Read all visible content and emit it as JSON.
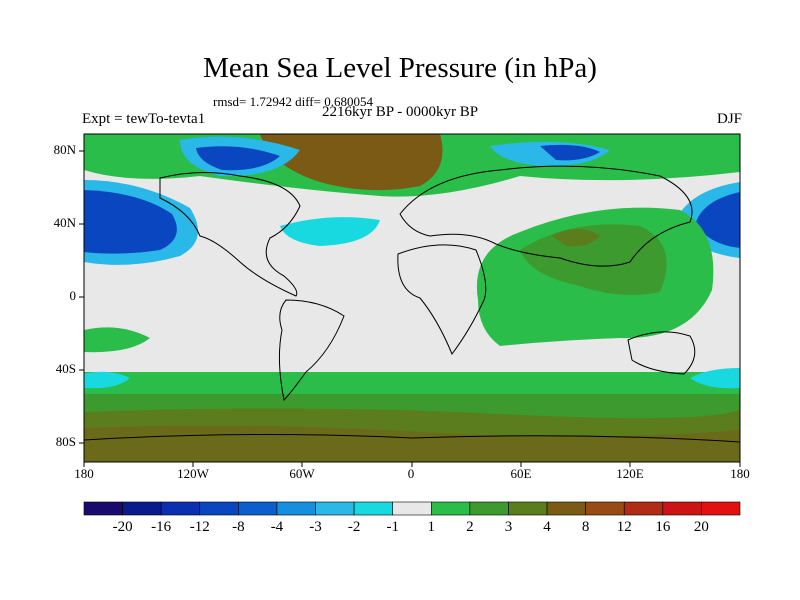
{
  "title": "Mean Sea Level Pressure (in hPa)",
  "stats": "rmsd= 1.72942 diff= 0.680054",
  "period": "2216kyr BP - 0000kyr BP",
  "experiment": "Expt = tewTo-tevta1",
  "season": "DJF",
  "lat_labels": [
    "80N",
    "40N",
    "0",
    "40S",
    "80S"
  ],
  "lon_labels": [
    "180",
    "120W",
    "60W",
    "0",
    "60E",
    "120E",
    "180"
  ],
  "colorbar": {
    "labels": [
      "-20",
      "-16",
      "-12",
      "-8",
      "-4",
      "-3",
      "-2",
      "-1",
      "1",
      "2",
      "3",
      "4",
      "8",
      "12",
      "16",
      "20"
    ],
    "colors": [
      "#1a0a6e",
      "#0a1c8c",
      "#0a2fb0",
      "#0a46c0",
      "#0a5ecd",
      "#1590dc",
      "#2ab8e8",
      "#18d8e0",
      "#e8e8e8",
      "#2bbd4a",
      "#3d9a2e",
      "#5b7d1e",
      "#7a5a14",
      "#9a4a14",
      "#b02c14",
      "#cc1414",
      "#e41010"
    ]
  },
  "colors": {
    "land_outline": "#000000",
    "neutral": "#e8e8e8"
  }
}
